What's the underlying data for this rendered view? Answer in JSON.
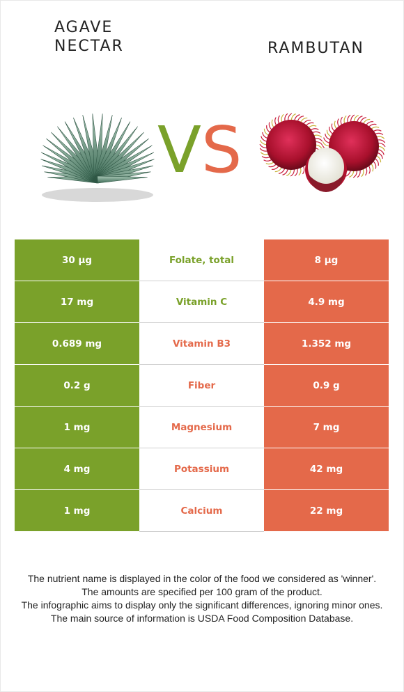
{
  "foods": {
    "left": {
      "name_line1": "AGAVE",
      "name_line2": "NECTAR",
      "color": "#7aa12a"
    },
    "right": {
      "name": "RAMBUTAN",
      "color": "#e4694a"
    }
  },
  "vs": {
    "v": "V",
    "s": "S"
  },
  "rows": [
    {
      "nutrient": "Folate, total",
      "left": "30 µg",
      "right": "8 µg",
      "winner": "left"
    },
    {
      "nutrient": "Vitamin C",
      "left": "17 mg",
      "right": "4.9 mg",
      "winner": "left"
    },
    {
      "nutrient": "Vitamin B3",
      "left": "0.689 mg",
      "right": "1.352 mg",
      "winner": "right"
    },
    {
      "nutrient": "Fiber",
      "left": "0.2 g",
      "right": "0.9 g",
      "winner": "right"
    },
    {
      "nutrient": "Magnesium",
      "left": "1 mg",
      "right": "7 mg",
      "winner": "right"
    },
    {
      "nutrient": "Potassium",
      "left": "4 mg",
      "right": "42 mg",
      "winner": "right"
    },
    {
      "nutrient": "Calcium",
      "left": "1 mg",
      "right": "22 mg",
      "winner": "right"
    }
  ],
  "notes": [
    "The nutrient name is displayed in the color of the food we considered as 'winner'.",
    "The amounts are specified per 100 gram of the product.",
    "The infographic aims to display only the significant differences, ignoring minor ones.",
    "The main source of information is USDA Food Composition Database."
  ]
}
